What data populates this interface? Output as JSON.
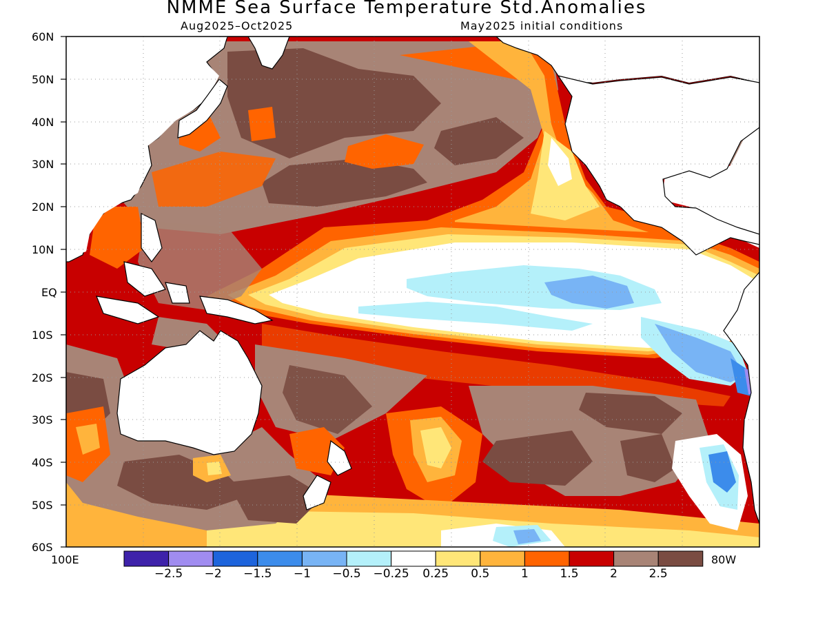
{
  "title": "NMME Sea Surface Temperature Std.Anomalies",
  "subtitle_left": "Aug2025–Oct2025",
  "subtitle_right": "May2025 initial conditions",
  "lat_labels": [
    "60N",
    "50N",
    "40N",
    "30N",
    "20N",
    "10N",
    "EQ",
    "10S",
    "20S",
    "30S",
    "40S",
    "50S",
    "60S"
  ],
  "lon_left": "100E",
  "lon_right": "80W",
  "colorbar": {
    "colors": [
      "#3e22aa",
      "#a08cf0",
      "#1d64dc",
      "#3c8ceb",
      "#78b4f5",
      "#b4f0fa",
      "#ffffff",
      "#ffe678",
      "#ffb43c",
      "#ff6400",
      "#c80000",
      "#a88476",
      "#7a4c42"
    ],
    "labels": [
      "−2.5",
      "−2",
      "−1.5",
      "−1",
      "−0.5",
      "−0.25",
      "0.25",
      "0.5",
      "1",
      "1.5",
      "2",
      "2.5"
    ]
  },
  "colors": {
    "land": "#ffffff",
    "coast": "#000000",
    "grid": "#9a9a9a"
  }
}
